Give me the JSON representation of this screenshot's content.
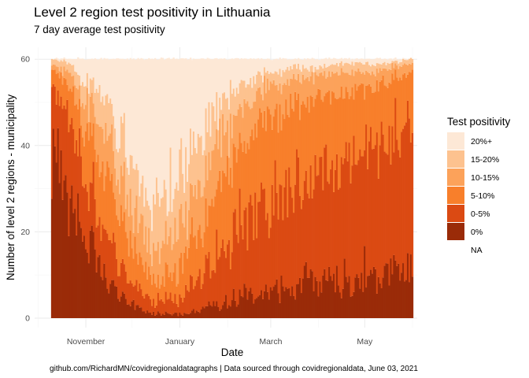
{
  "chart_data": {
    "type": "bar",
    "title": "Level 2 region test positivity in Lithuania",
    "subtitle": "7 day average test positivity",
    "xlabel": "Date",
    "ylabel": "Number of level 2 regions - municipality",
    "caption": "github.com/RichardMN/covidregionaldatagraphs | Data sourced through covidregionaldata, June 03, 2021",
    "x_tick_labels": [
      "November",
      "January",
      "March",
      "May"
    ],
    "y_tick_labels": [
      "0",
      "20",
      "40",
      "60"
    ],
    "ylim": [
      0,
      62
    ],
    "grid": true,
    "legend": {
      "title": "Test positivity",
      "position": "right",
      "entries": [
        "20%+",
        "15-20%",
        "10-15%",
        "5-10%",
        "0-5%",
        "0%",
        "NA"
      ]
    },
    "colors": {
      "20%+": "#fde8d6",
      "15-20%": "#fdc28f",
      "10-15%": "#fca25a",
      "5-10%": "#f87f2b",
      "0-5%": "#db4a13",
      "0%": "#9a2b08",
      "NA": "#ffffff"
    },
    "stacking_order": [
      "0%",
      "0-5%",
      "5-10%",
      "10-15%",
      "15-20%",
      "20%+"
    ],
    "date_range": [
      "2020-10-10",
      "2021-06-01"
    ],
    "total_regions": 61,
    "series": [
      {
        "name": "0%",
        "x": [
          "2020-10-10",
          "2020-10-20",
          "2020-11-01",
          "2020-11-15",
          "2020-12-01",
          "2020-12-15",
          "2021-01-01",
          "2021-01-15",
          "2021-02-01",
          "2021-02-15",
          "2021-03-01",
          "2021-03-15",
          "2021-04-01",
          "2021-04-15",
          "2021-05-01",
          "2021-05-15",
          "2021-06-01"
        ],
        "values": [
          40,
          30,
          18,
          8,
          3,
          1,
          1,
          2,
          4,
          5,
          6,
          7,
          8,
          9,
          9,
          10,
          11
        ]
      },
      {
        "name": "0-5%",
        "x": [
          "2020-10-10",
          "2020-10-20",
          "2020-11-01",
          "2020-11-15",
          "2020-12-01",
          "2020-12-15",
          "2021-01-01",
          "2021-01-15",
          "2021-02-01",
          "2021-02-15",
          "2021-03-01",
          "2021-03-15",
          "2021-04-01",
          "2021-04-15",
          "2021-05-01",
          "2021-05-15",
          "2021-06-01"
        ],
        "values": [
          15,
          18,
          16,
          10,
          5,
          3,
          4,
          8,
          14,
          18,
          22,
          24,
          26,
          28,
          30,
          33,
          38
        ]
      },
      {
        "name": "5-10%",
        "x": [
          "2020-10-10",
          "2020-10-20",
          "2020-11-01",
          "2020-11-15",
          "2020-12-01",
          "2020-12-15",
          "2021-01-01",
          "2021-01-15",
          "2021-02-01",
          "2021-02-15",
          "2021-03-01",
          "2021-03-15",
          "2021-04-01",
          "2021-04-15",
          "2021-05-01",
          "2021-05-15",
          "2021-06-01"
        ],
        "values": [
          4,
          7,
          12,
          14,
          9,
          5,
          7,
          12,
          18,
          20,
          20,
          19,
          18,
          16,
          15,
          13,
          9
        ]
      },
      {
        "name": "10-15%",
        "x": [
          "2020-10-10",
          "2020-10-20",
          "2020-11-01",
          "2020-11-15",
          "2020-12-01",
          "2020-12-15",
          "2021-01-01",
          "2021-01-15",
          "2021-02-01",
          "2021-02-15",
          "2021-03-01",
          "2021-03-15",
          "2021-04-01",
          "2021-04-15",
          "2021-05-01",
          "2021-05-15",
          "2021-06-01"
        ],
        "values": [
          1,
          3,
          6,
          9,
          10,
          7,
          9,
          10,
          10,
          8,
          7,
          6,
          5,
          5,
          4,
          3,
          2
        ]
      },
      {
        "name": "15-20%",
        "x": [
          "2020-10-10",
          "2020-10-20",
          "2020-11-01",
          "2020-11-15",
          "2020-12-01",
          "2020-12-15",
          "2021-01-01",
          "2021-01-15",
          "2021-02-01",
          "2021-02-15",
          "2021-03-01",
          "2021-03-15",
          "2021-04-01",
          "2021-04-15",
          "2021-05-01",
          "2021-05-15",
          "2021-06-01"
        ],
        "values": [
          1,
          2,
          4,
          8,
          10,
          10,
          12,
          10,
          7,
          5,
          3,
          3,
          2,
          2,
          2,
          1,
          1
        ]
      },
      {
        "name": "20%+",
        "x": [
          "2020-10-10",
          "2020-10-20",
          "2020-11-01",
          "2020-11-15",
          "2020-12-01",
          "2020-12-15",
          "2021-01-01",
          "2021-01-15",
          "2021-02-01",
          "2021-02-15",
          "2021-03-01",
          "2021-03-15",
          "2021-04-01",
          "2021-04-15",
          "2021-05-01",
          "2021-05-15",
          "2021-06-01"
        ],
        "values": [
          0,
          1,
          5,
          12,
          24,
          35,
          28,
          19,
          8,
          5,
          3,
          2,
          2,
          1,
          1,
          1,
          0
        ]
      }
    ]
  }
}
